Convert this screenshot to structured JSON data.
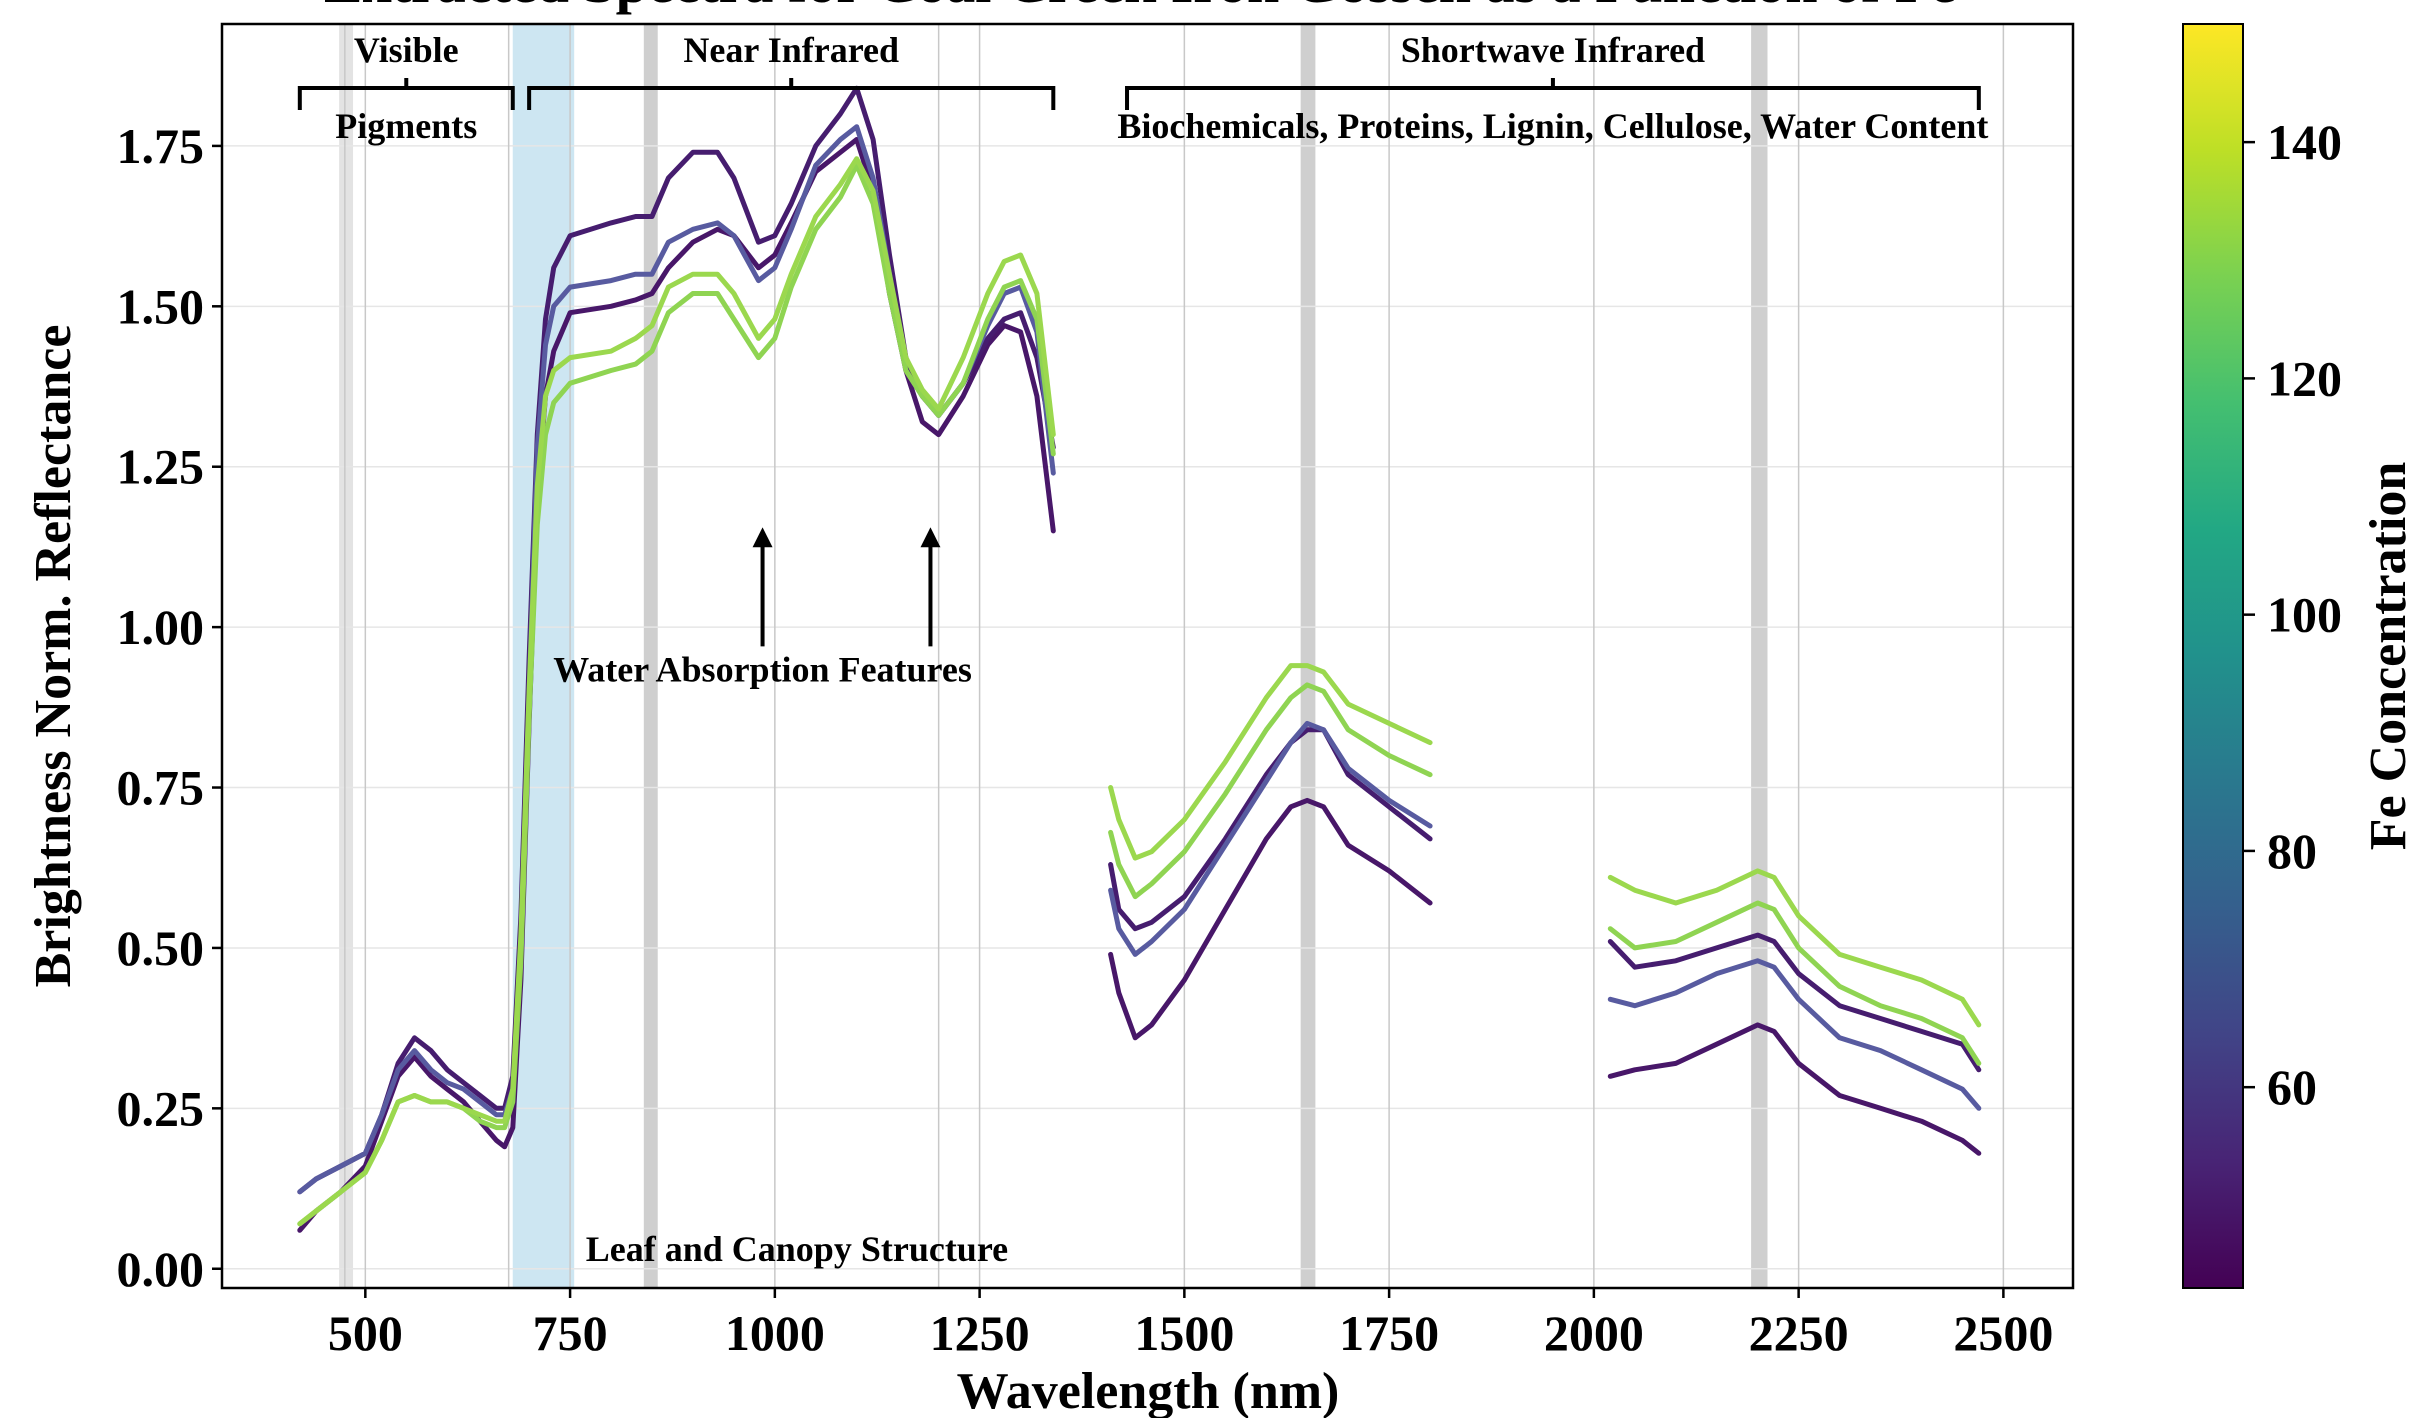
{
  "chart_data": {
    "type": "line",
    "title": "Extracted Spectra for Coal Creek Iron Gossen as a Function of Fe",
    "xlabel": "Wavelength (nm)",
    "ylabel": "Brightness Norm. Reflectance",
    "xlim": [
      325,
      2585
    ],
    "ylim": [
      -0.03,
      1.94
    ],
    "x_ticks": [
      500,
      750,
      1000,
      1250,
      1500,
      1750,
      2000,
      2250,
      2500
    ],
    "y_ticks": [
      0.0,
      0.25,
      0.5,
      0.75,
      1.0,
      1.25,
      1.5,
      1.75
    ],
    "x_tick_labels": [
      "500",
      "750",
      "1000",
      "1250",
      "1500",
      "1750",
      "2000",
      "2250",
      "2500"
    ],
    "y_tick_labels": [
      "0.00",
      "0.25",
      "0.50",
      "0.75",
      "1.00",
      "1.25",
      "1.50",
      "1.75"
    ],
    "grid": true,
    "vertical_gridlines": [
      475,
      500,
      675,
      750,
      1000,
      1200,
      1250,
      1500,
      1750,
      2000,
      2250,
      2500
    ],
    "colorbar": {
      "label": "Fe  Concentration",
      "range": [
        43,
        150
      ],
      "ticks": [
        60,
        80,
        100,
        120,
        140
      ],
      "tick_labels": [
        "60",
        "80",
        "100",
        "120",
        "140"
      ],
      "colormap": "viridis"
    },
    "highlight_regions": [
      {
        "from": 680,
        "to": 755,
        "color": "#cde6f2"
      },
      {
        "from": 468,
        "to": 485,
        "color": "#e3e3e3"
      },
      {
        "from": 840,
        "to": 857,
        "color": "#cfcfcf"
      },
      {
        "from": 1642,
        "to": 1660,
        "color": "#cfcfcf"
      },
      {
        "from": 2192,
        "to": 2212,
        "color": "#cfcfcf"
      }
    ],
    "region_brackets": [
      {
        "label": "Visible",
        "sublabel": "Pigments",
        "from": 420,
        "to": 680
      },
      {
        "label": "Near Infrared",
        "sublabel": "",
        "from": 700,
        "to": 1340
      },
      {
        "label": "Shortwave Infrared",
        "sublabel": "Biochemicals, Proteins, Lignin, Cellulose, Water Content",
        "from": 1430,
        "to": 2470
      }
    ],
    "annotations": {
      "water": "Water Absorption Features",
      "structure": "Leaf and Canopy Structure",
      "arrows_x": [
        985,
        1190
      ]
    },
    "series": [
      {
        "fe": 45,
        "color": "#481769",
        "segments": [
          {
            "x": [
              420,
              440,
              470,
              500,
              520,
              540,
              560,
              580,
              600,
              620,
              640,
              660,
              670,
              680,
              690,
              700,
              710,
              720,
              730,
              750,
              800,
              830,
              850,
              870,
              900,
              930,
              950,
              980,
              1000,
              1020,
              1050,
              1080,
              1100,
              1120,
              1140,
              1160,
              1180,
              1200,
              1230,
              1260,
              1280,
              1300,
              1320,
              1340
            ],
            "y": [
              0.06,
              0.09,
              0.12,
              0.16,
              0.23,
              0.3,
              0.33,
              0.3,
              0.28,
              0.26,
              0.23,
              0.2,
              0.19,
              0.22,
              0.45,
              0.85,
              1.2,
              1.36,
              1.43,
              1.49,
              1.5,
              1.51,
              1.52,
              1.56,
              1.6,
              1.62,
              1.61,
              1.56,
              1.58,
              1.63,
              1.71,
              1.74,
              1.76,
              1.68,
              1.52,
              1.4,
              1.32,
              1.3,
              1.36,
              1.44,
              1.47,
              1.46,
              1.36,
              1.15
            ]
          },
          {
            "x": [
              1410,
              1420,
              1440,
              1460,
              1500,
              1550,
              1600,
              1630,
              1650,
              1670,
              1700,
              1750,
              1800
            ],
            "y": [
              0.49,
              0.43,
              0.36,
              0.38,
              0.45,
              0.56,
              0.67,
              0.72,
              0.73,
              0.72,
              0.66,
              0.62,
              0.57
            ]
          },
          {
            "x": [
              2020,
              2050,
              2100,
              2150,
              2200,
              2220,
              2250,
              2300,
              2350,
              2400,
              2450,
              2470
            ],
            "y": [
              0.3,
              0.31,
              0.32,
              0.35,
              0.38,
              0.37,
              0.32,
              0.27,
              0.25,
              0.23,
              0.2,
              0.18
            ]
          }
        ]
      },
      {
        "fe": 50,
        "color": "#461d6f",
        "segments": [
          {
            "x": [
              420,
              440,
              470,
              500,
              520,
              540,
              560,
              580,
              600,
              620,
              640,
              660,
              670,
              680,
              690,
              700,
              710,
              720,
              730,
              750,
              800,
              830,
              850,
              870,
              900,
              930,
              950,
              980,
              1000,
              1020,
              1050,
              1080,
              1100,
              1120,
              1140,
              1160,
              1180,
              1200,
              1230,
              1260,
              1280,
              1300,
              1320,
              1340
            ],
            "y": [
              0.12,
              0.14,
              0.16,
              0.18,
              0.24,
              0.32,
              0.36,
              0.34,
              0.31,
              0.29,
              0.27,
              0.25,
              0.25,
              0.3,
              0.55,
              0.95,
              1.3,
              1.48,
              1.56,
              1.61,
              1.63,
              1.64,
              1.64,
              1.7,
              1.74,
              1.74,
              1.7,
              1.6,
              1.61,
              1.66,
              1.75,
              1.8,
              1.84,
              1.76,
              1.58,
              1.42,
              1.36,
              1.33,
              1.38,
              1.45,
              1.48,
              1.49,
              1.42,
              1.28
            ]
          },
          {
            "x": [
              1410,
              1420,
              1440,
              1460,
              1500,
              1550,
              1600,
              1630,
              1650,
              1670,
              1700,
              1750,
              1800
            ],
            "y": [
              0.63,
              0.56,
              0.53,
              0.54,
              0.58,
              0.67,
              0.77,
              0.82,
              0.84,
              0.84,
              0.77,
              0.72,
              0.67
            ]
          },
          {
            "x": [
              2020,
              2050,
              2100,
              2150,
              2200,
              2220,
              2250,
              2300,
              2350,
              2400,
              2450,
              2470
            ],
            "y": [
              0.51,
              0.47,
              0.48,
              0.5,
              0.52,
              0.51,
              0.46,
              0.41,
              0.39,
              0.37,
              0.35,
              0.31
            ]
          }
        ]
      },
      {
        "fe": 60,
        "color": "#585ba0",
        "segments": [
          {
            "x": [
              420,
              440,
              470,
              500,
              520,
              540,
              560,
              580,
              600,
              620,
              640,
              660,
              670,
              680,
              690,
              700,
              710,
              720,
              730,
              750,
              800,
              830,
              850,
              870,
              900,
              930,
              950,
              980,
              1000,
              1020,
              1050,
              1080,
              1100,
              1120,
              1140,
              1160,
              1180,
              1200,
              1230,
              1260,
              1280,
              1300,
              1320,
              1340
            ],
            "y": [
              0.12,
              0.14,
              0.16,
              0.18,
              0.24,
              0.31,
              0.34,
              0.31,
              0.29,
              0.28,
              0.26,
              0.24,
              0.24,
              0.28,
              0.5,
              0.9,
              1.28,
              1.44,
              1.5,
              1.53,
              1.54,
              1.55,
              1.55,
              1.6,
              1.62,
              1.63,
              1.61,
              1.54,
              1.56,
              1.62,
              1.72,
              1.76,
              1.78,
              1.7,
              1.55,
              1.4,
              1.36,
              1.33,
              1.38,
              1.47,
              1.52,
              1.53,
              1.46,
              1.24
            ]
          },
          {
            "x": [
              1410,
              1420,
              1440,
              1460,
              1500,
              1550,
              1600,
              1630,
              1650,
              1670,
              1700,
              1750,
              1800
            ],
            "y": [
              0.59,
              0.53,
              0.49,
              0.51,
              0.56,
              0.66,
              0.76,
              0.82,
              0.85,
              0.84,
              0.78,
              0.73,
              0.69
            ]
          },
          {
            "x": [
              2020,
              2050,
              2100,
              2150,
              2200,
              2220,
              2250,
              2300,
              2350,
              2400,
              2450,
              2470
            ],
            "y": [
              0.42,
              0.41,
              0.43,
              0.46,
              0.48,
              0.47,
              0.42,
              0.36,
              0.34,
              0.31,
              0.28,
              0.25
            ]
          }
        ]
      },
      {
        "fe": 135,
        "color": "#8fd452",
        "segments": [
          {
            "x": [
              420,
              440,
              470,
              500,
              520,
              540,
              560,
              580,
              600,
              620,
              640,
              660,
              670,
              680,
              690,
              700,
              710,
              720,
              730,
              750,
              800,
              830,
              850,
              870,
              900,
              930,
              950,
              980,
              1000,
              1020,
              1050,
              1080,
              1100,
              1120,
              1140,
              1160,
              1180,
              1200,
              1230,
              1260,
              1280,
              1300,
              1320,
              1340
            ],
            "y": [
              0.07,
              0.09,
              0.12,
              0.15,
              0.2,
              0.26,
              0.27,
              0.26,
              0.26,
              0.25,
              0.23,
              0.22,
              0.22,
              0.26,
              0.48,
              0.86,
              1.16,
              1.3,
              1.35,
              1.38,
              1.4,
              1.41,
              1.43,
              1.49,
              1.52,
              1.52,
              1.48,
              1.42,
              1.45,
              1.53,
              1.62,
              1.67,
              1.72,
              1.66,
              1.52,
              1.4,
              1.36,
              1.33,
              1.38,
              1.48,
              1.53,
              1.54,
              1.48,
              1.27
            ]
          },
          {
            "x": [
              1410,
              1420,
              1440,
              1460,
              1500,
              1550,
              1600,
              1630,
              1650,
              1670,
              1700,
              1750,
              1800
            ],
            "y": [
              0.68,
              0.63,
              0.58,
              0.6,
              0.65,
              0.74,
              0.84,
              0.89,
              0.91,
              0.9,
              0.84,
              0.8,
              0.77
            ]
          },
          {
            "x": [
              2020,
              2050,
              2100,
              2150,
              2200,
              2220,
              2250,
              2300,
              2350,
              2400,
              2450,
              2470
            ],
            "y": [
              0.53,
              0.5,
              0.51,
              0.54,
              0.57,
              0.56,
              0.5,
              0.44,
              0.41,
              0.39,
              0.36,
              0.32
            ]
          }
        ]
      },
      {
        "fe": 140,
        "color": "#9bd84e",
        "segments": [
          {
            "x": [
              420,
              440,
              470,
              500,
              520,
              540,
              560,
              580,
              600,
              620,
              640,
              660,
              670,
              680,
              690,
              700,
              710,
              720,
              730,
              750,
              800,
              830,
              850,
              870,
              900,
              930,
              950,
              980,
              1000,
              1020,
              1050,
              1080,
              1100,
              1120,
              1140,
              1160,
              1180,
              1200,
              1230,
              1260,
              1280,
              1300,
              1320,
              1340
            ],
            "y": [
              0.07,
              0.09,
              0.12,
              0.15,
              0.2,
              0.26,
              0.27,
              0.26,
              0.26,
              0.25,
              0.24,
              0.23,
              0.23,
              0.28,
              0.52,
              0.9,
              1.22,
              1.36,
              1.4,
              1.42,
              1.43,
              1.45,
              1.47,
              1.53,
              1.55,
              1.55,
              1.52,
              1.45,
              1.48,
              1.55,
              1.64,
              1.69,
              1.73,
              1.68,
              1.55,
              1.42,
              1.37,
              1.34,
              1.42,
              1.52,
              1.57,
              1.58,
              1.52,
              1.3
            ]
          },
          {
            "x": [
              1410,
              1420,
              1440,
              1460,
              1500,
              1550,
              1600,
              1630,
              1650,
              1670,
              1700,
              1750,
              1800
            ],
            "y": [
              0.75,
              0.7,
              0.64,
              0.65,
              0.7,
              0.79,
              0.89,
              0.94,
              0.94,
              0.93,
              0.88,
              0.85,
              0.82
            ]
          },
          {
            "x": [
              2020,
              2050,
              2100,
              2150,
              2200,
              2220,
              2250,
              2300,
              2350,
              2400,
              2450,
              2470
            ],
            "y": [
              0.61,
              0.59,
              0.57,
              0.59,
              0.62,
              0.61,
              0.55,
              0.49,
              0.47,
              0.45,
              0.42,
              0.38
            ]
          }
        ]
      }
    ]
  }
}
